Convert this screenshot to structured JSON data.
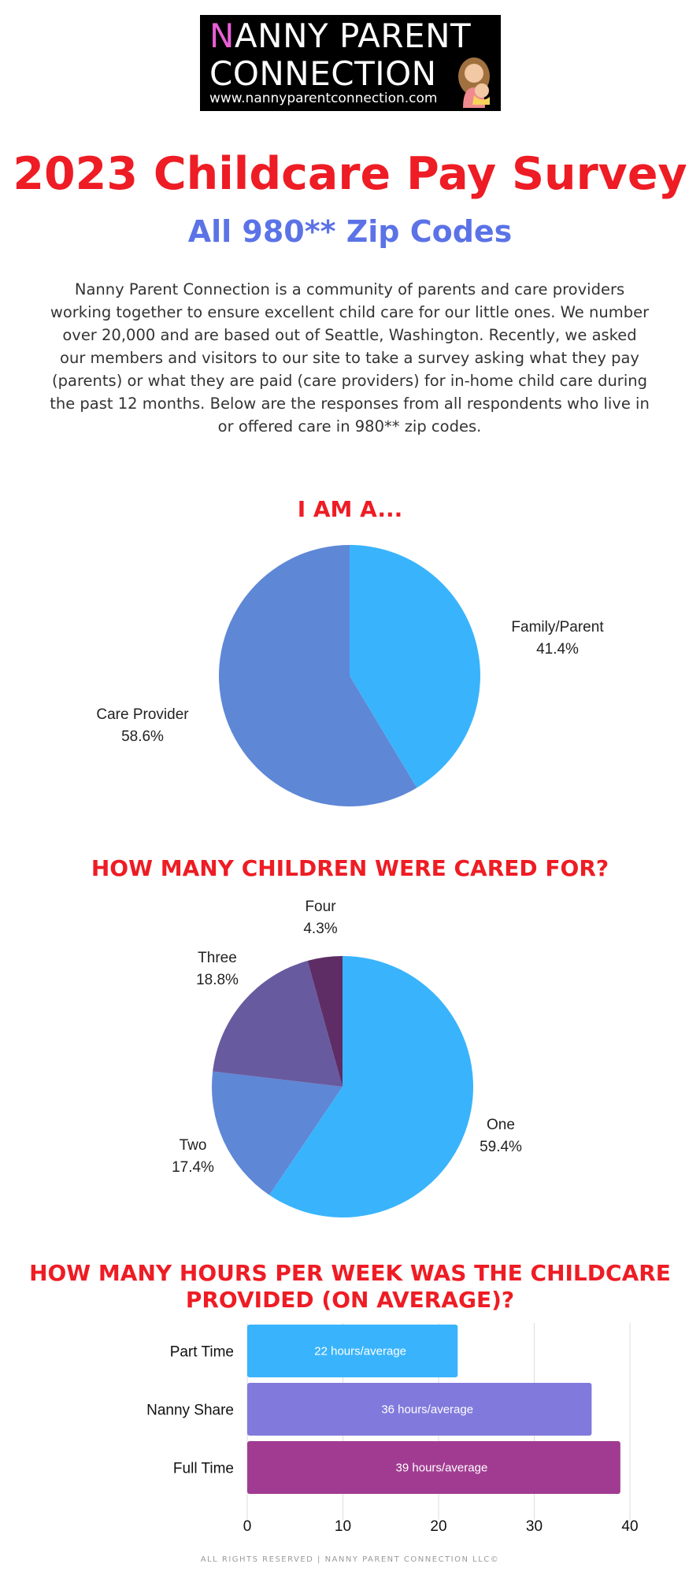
{
  "logo": {
    "first_letter": "N",
    "line1_rest": "ANNY PARENT",
    "line2": "CONNECTION",
    "url": "www.nannyparentconnection.com"
  },
  "title": "2023 Childcare Pay Survey",
  "subtitle": "All 980** Zip Codes",
  "intro": "Nanny Parent Connection is a community of parents and care providers working together to ensure excellent child care for our little ones. We number over 20,000 and are based out of Seattle, Washington. Recently, we asked our members and visitors to our site to take a survey asking what they pay (parents) or what they are paid (care providers) for in-home child care during the past 12 months. Below are the responses from all respondents who live in or offered care in 980** zip codes.",
  "footer": "ALL RIGHTS RESERVED | NANNY PARENT CONNECTION LLC©",
  "colors": {
    "title_red": "#ee1c24",
    "subtitle_blue": "#5b73e6",
    "logo_accent_pink": "#e95fd6"
  },
  "chart_data": [
    {
      "type": "pie",
      "title": "I AM A...",
      "slices": [
        {
          "label": "Family/Parent",
          "percent_text": "41.4%",
          "value": 41.4,
          "color": "#39b4fc"
        },
        {
          "label": "Care Provider",
          "percent_text": "58.6%",
          "value": 58.6,
          "color": "#5e87d6"
        }
      ]
    },
    {
      "type": "pie",
      "title": "HOW MANY CHILDREN WERE CARED FOR?",
      "slices": [
        {
          "label": "One",
          "percent_text": "59.4%",
          "value": 59.4,
          "color": "#39b4fc"
        },
        {
          "label": "Two",
          "percent_text": "17.4%",
          "value": 17.4,
          "color": "#5e87d6"
        },
        {
          "label": "Three",
          "percent_text": "18.8%",
          "value": 18.8,
          "color": "#685a9f"
        },
        {
          "label": "Four",
          "percent_text": "4.3%",
          "value": 4.3,
          "color": "#5e2d66"
        }
      ]
    },
    {
      "type": "bar",
      "orientation": "horizontal",
      "title": "HOW MANY HOURS PER WEEK WAS THE CHILDCARE PROVIDED (ON AVERAGE)?",
      "categories": [
        "Part Time",
        "Nanny Share",
        "Full Time"
      ],
      "values": [
        22,
        36,
        39
      ],
      "data_labels": [
        "22 hours/average",
        "36 hours/average",
        "39 hours/average"
      ],
      "colors": [
        "#39b4fc",
        "#8179dc",
        "#a13b91"
      ],
      "xlim": [
        0,
        40
      ],
      "xticks": [
        "0",
        "10",
        "20",
        "30",
        "40"
      ],
      "grid": true
    }
  ]
}
